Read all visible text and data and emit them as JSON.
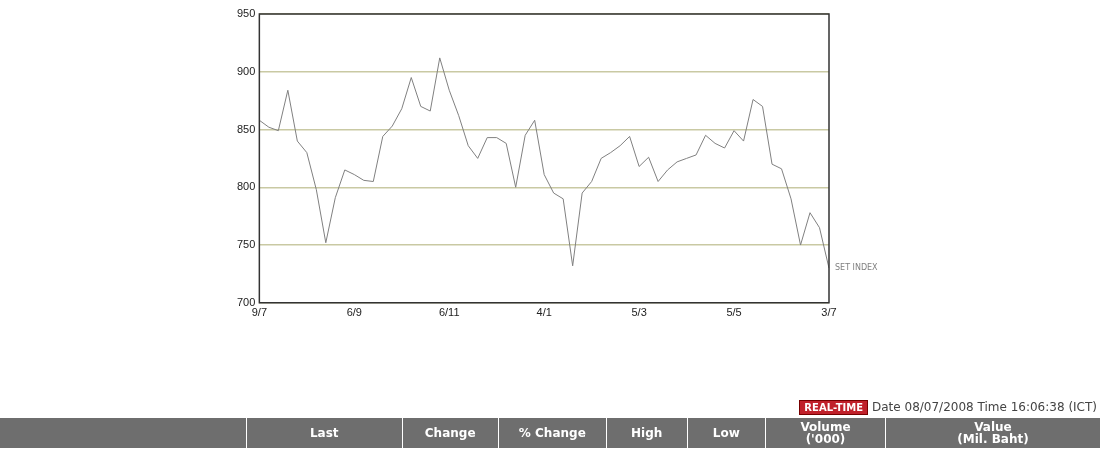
{
  "chart_data": {
    "type": "line",
    "categories": [
      "9/7",
      null,
      null,
      null,
      null,
      null,
      null,
      null,
      null,
      null,
      "6/9",
      null,
      null,
      null,
      null,
      null,
      null,
      null,
      null,
      null,
      "6/11",
      null,
      null,
      null,
      null,
      null,
      null,
      null,
      null,
      null,
      "4/1",
      null,
      null,
      null,
      null,
      null,
      null,
      null,
      null,
      null,
      "5/3",
      null,
      null,
      null,
      null,
      null,
      null,
      null,
      null,
      null,
      "5/5",
      null,
      null,
      null,
      null,
      null,
      null,
      null,
      null,
      null,
      "3/7"
    ],
    "series": [
      {
        "name": "SET INDEX",
        "color": "#808080",
        "values": [
          858,
          852,
          849,
          884,
          840,
          830,
          798,
          752,
          791,
          815,
          811,
          806,
          805,
          844,
          853,
          868,
          895,
          870,
          866,
          912,
          884,
          862,
          836,
          825,
          843,
          843,
          838,
          800,
          845,
          858,
          811,
          795,
          790,
          732,
          795,
          805,
          825,
          830,
          836,
          844,
          818,
          826,
          805,
          815,
          822,
          825,
          828,
          845,
          838,
          834,
          849,
          840,
          876,
          870,
          820,
          816,
          790,
          750,
          778,
          765,
          730
        ]
      }
    ],
    "ylim": [
      700,
      950
    ],
    "yticks": [
      700,
      750,
      800,
      850,
      900,
      950
    ],
    "grid": "y",
    "legend": false,
    "marker": "none",
    "line_style": "solid",
    "annotations": [
      "REAL-TIME",
      "Date 08/07/2008 Time 16:06:38 (ICT)",
      "Last",
      "Change",
      "% Change",
      "High",
      "Low",
      "Volume\n('000)",
      "Value\n(Mil. Baht)"
    ]
  }
}
